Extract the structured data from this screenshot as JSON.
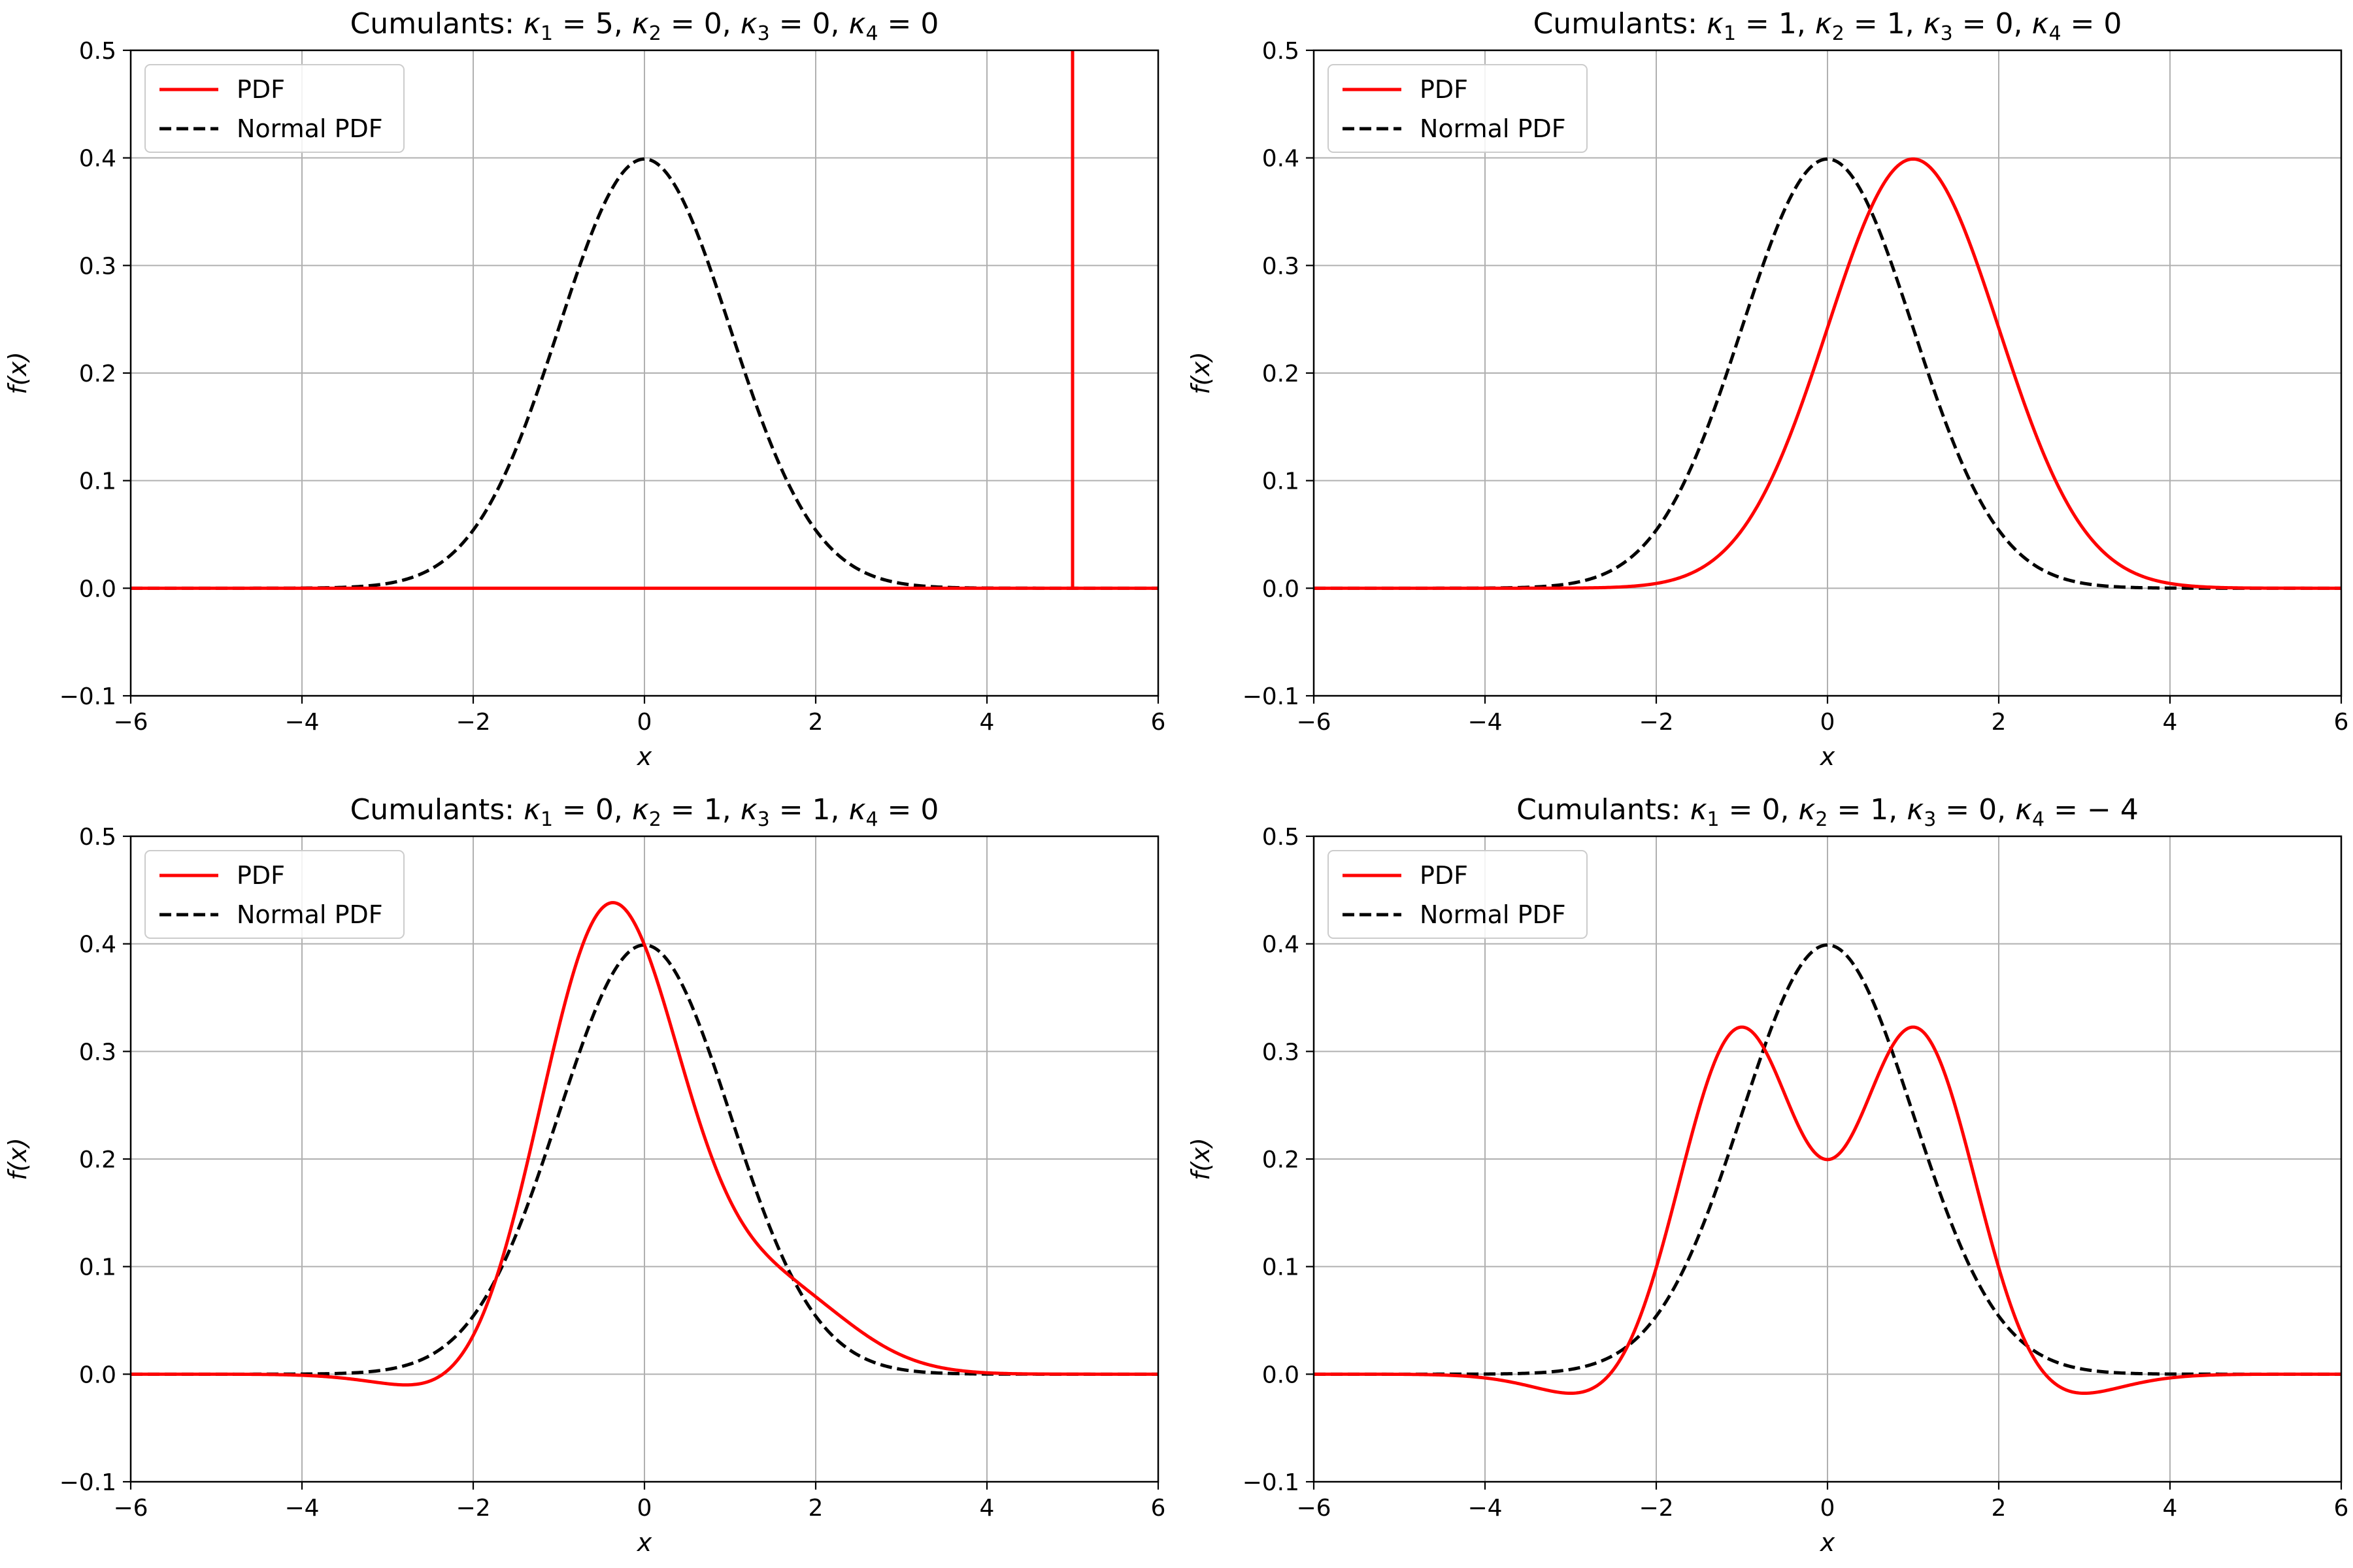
{
  "chart_data": [
    {
      "type": "line",
      "title": {
        "prefix": "Cumulants: ",
        "k1": "5",
        "k2": "0",
        "k3": "0",
        "k4": "0"
      },
      "xlabel": "x",
      "ylabel": "f(x)",
      "xlim": [
        -6,
        6
      ],
      "ylim": [
        -0.1,
        0.5
      ],
      "xticks": [
        -6,
        -4,
        -2,
        0,
        2,
        4,
        6
      ],
      "yticks": [
        -0.1,
        0.0,
        0.1,
        0.2,
        0.3,
        0.4,
        0.5
      ],
      "grid": true,
      "legend": "upper-left",
      "cumulants": [
        5,
        0,
        0,
        0
      ],
      "series": [
        {
          "name": "PDF",
          "color": "#ff0000",
          "style": "solid",
          "model": "delta",
          "spike_at": 5
        },
        {
          "name": "Normal PDF",
          "color": "#000000",
          "style": "dashed",
          "model": "normal"
        }
      ]
    },
    {
      "type": "line",
      "title": {
        "prefix": "Cumulants: ",
        "k1": "1",
        "k2": "1",
        "k3": "0",
        "k4": "0"
      },
      "xlabel": "x",
      "ylabel": "f(x)",
      "xlim": [
        -6,
        6
      ],
      "ylim": [
        -0.1,
        0.5
      ],
      "xticks": [
        -6,
        -4,
        -2,
        0,
        2,
        4,
        6
      ],
      "yticks": [
        -0.1,
        0.0,
        0.1,
        0.2,
        0.3,
        0.4,
        0.5
      ],
      "grid": true,
      "legend": "upper-left",
      "cumulants": [
        1,
        1,
        0,
        0
      ],
      "series": [
        {
          "name": "PDF",
          "color": "#ff0000",
          "style": "solid",
          "model": "gram-charlier"
        },
        {
          "name": "Normal PDF",
          "color": "#000000",
          "style": "dashed",
          "model": "normal"
        }
      ]
    },
    {
      "type": "line",
      "title": {
        "prefix": "Cumulants: ",
        "k1": "0",
        "k2": "1",
        "k3": "1",
        "k4": "0"
      },
      "xlabel": "x",
      "ylabel": "f(x)",
      "xlim": [
        -6,
        6
      ],
      "ylim": [
        -0.1,
        0.5
      ],
      "xticks": [
        -6,
        -4,
        -2,
        0,
        2,
        4,
        6
      ],
      "yticks": [
        -0.1,
        0.0,
        0.1,
        0.2,
        0.3,
        0.4,
        0.5
      ],
      "grid": true,
      "legend": "upper-left",
      "cumulants": [
        0,
        1,
        1,
        0
      ],
      "series": [
        {
          "name": "PDF",
          "color": "#ff0000",
          "style": "solid",
          "model": "gram-charlier"
        },
        {
          "name": "Normal PDF",
          "color": "#000000",
          "style": "dashed",
          "model": "normal"
        }
      ]
    },
    {
      "type": "line",
      "title": {
        "prefix": "Cumulants: ",
        "k1": "0",
        "k2": "1",
        "k3": "0",
        "k4": "− 4"
      },
      "xlabel": "x",
      "ylabel": "f(x)",
      "xlim": [
        -6,
        6
      ],
      "ylim": [
        -0.1,
        0.5
      ],
      "xticks": [
        -6,
        -4,
        -2,
        0,
        2,
        4,
        6
      ],
      "yticks": [
        -0.1,
        0.0,
        0.1,
        0.2,
        0.3,
        0.4,
        0.5
      ],
      "grid": true,
      "legend": "upper-left",
      "cumulants": [
        0,
        1,
        0,
        -4
      ],
      "series": [
        {
          "name": "PDF",
          "color": "#ff0000",
          "style": "solid",
          "model": "gram-charlier"
        },
        {
          "name": "Normal PDF",
          "color": "#000000",
          "style": "dashed",
          "model": "normal"
        }
      ]
    }
  ]
}
